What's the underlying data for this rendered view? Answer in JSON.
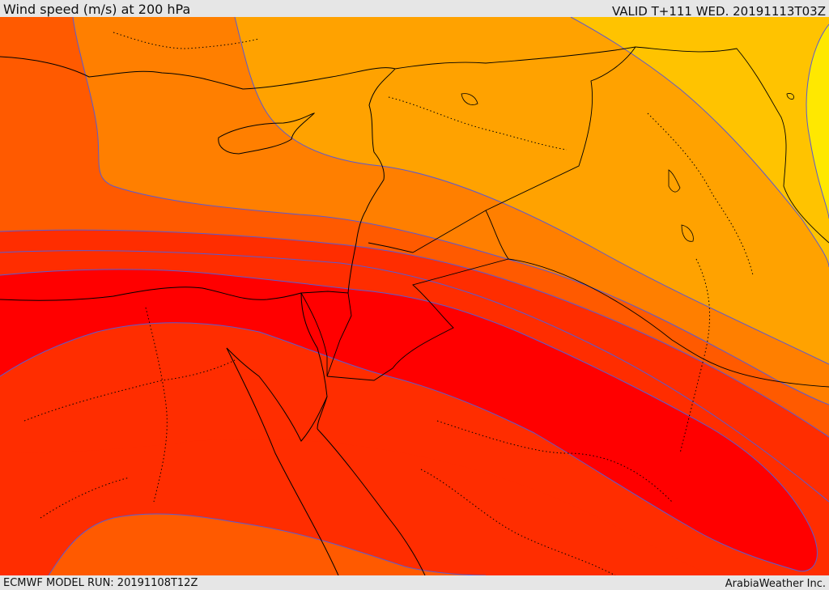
{
  "header": {
    "title": "Wind speed (m/s) at 200 hPa",
    "valid_time": "VALID T+111 WED. 20191113T03Z"
  },
  "footer": {
    "model_run": "ECMWF MODEL RUN: 20191108T12Z",
    "credit": "ArabiaWeather Inc."
  },
  "map": {
    "field": "wind speed",
    "colors": {
      "band_1": "#ffe800",
      "band_2": "#ffc300",
      "band_3": "#ffa200",
      "band_4": "#ff7f00",
      "band_5": "#ff5a00",
      "band_6": "#ff2d00",
      "band_7": "#ff0000",
      "contour": "#5a5ad2",
      "border": "#000000"
    }
  }
}
